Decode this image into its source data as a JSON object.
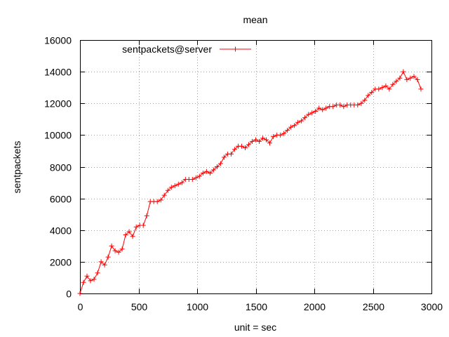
{
  "chart_data": {
    "type": "line",
    "title": "mean",
    "xlabel": "unit = sec",
    "ylabel": "sentpackets",
    "xlim": [
      0,
      3000
    ],
    "ylim": [
      0,
      16000
    ],
    "x_ticks": [
      "0",
      "500",
      "1000",
      "1500",
      "2000",
      "2500",
      "3000"
    ],
    "y_ticks": [
      "0",
      "2000",
      "4000",
      "6000",
      "8000",
      "10000",
      "12000",
      "14000",
      "16000"
    ],
    "grid": true,
    "legend_position": "top-left",
    "marker": "plus",
    "series": [
      {
        "name": "sentpackets@server",
        "color": "#ff0000",
        "x": [
          0,
          30,
          60,
          90,
          120,
          150,
          180,
          210,
          240,
          270,
          300,
          330,
          360,
          390,
          420,
          450,
          480,
          510,
          540,
          570,
          600,
          630,
          660,
          690,
          720,
          750,
          780,
          810,
          840,
          870,
          900,
          930,
          960,
          990,
          1020,
          1050,
          1080,
          1110,
          1140,
          1170,
          1200,
          1230,
          1260,
          1290,
          1320,
          1350,
          1380,
          1410,
          1440,
          1470,
          1500,
          1530,
          1560,
          1590,
          1620,
          1650,
          1680,
          1710,
          1740,
          1770,
          1800,
          1830,
          1860,
          1890,
          1920,
          1950,
          1980,
          2010,
          2040,
          2070,
          2100,
          2130,
          2160,
          2190,
          2220,
          2250,
          2280,
          2310,
          2340,
          2370,
          2400,
          2430,
          2460,
          2490,
          2520,
          2550,
          2580,
          2610,
          2640,
          2670,
          2700,
          2730,
          2760,
          2790,
          2820,
          2850,
          2880,
          2910
        ],
        "y": [
          0,
          700,
          1100,
          800,
          900,
          1300,
          2000,
          1800,
          2300,
          3000,
          2700,
          2600,
          2800,
          3700,
          3900,
          3600,
          4200,
          4300,
          4300,
          4900,
          5800,
          5800,
          5800,
          5900,
          6200,
          6500,
          6700,
          6800,
          6900,
          7000,
          7200,
          7200,
          7200,
          7300,
          7400,
          7600,
          7700,
          7600,
          7800,
          8000,
          8200,
          8600,
          8800,
          8800,
          9100,
          9300,
          9300,
          9200,
          9400,
          9600,
          9700,
          9600,
          9800,
          9700,
          9500,
          9900,
          10000,
          10000,
          10100,
          10300,
          10500,
          10600,
          10800,
          10900,
          11100,
          11300,
          11400,
          11500,
          11700,
          11600,
          11700,
          11800,
          11800,
          11900,
          11900,
          11800,
          11900,
          11900,
          11900,
          11900,
          12000,
          12200,
          12500,
          12700,
          12900,
          12900,
          13000,
          13100,
          12900,
          13200,
          13400,
          13600,
          14000,
          13500,
          13600,
          13700,
          13500,
          12900
        ]
      }
    ]
  }
}
